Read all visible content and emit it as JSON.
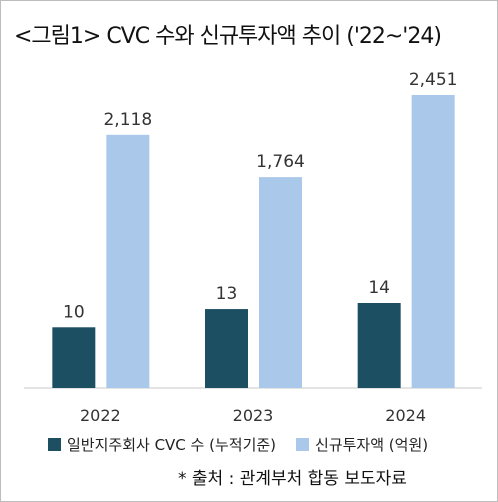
{
  "title": "<그림1> CVC 수와 신규투자액 추이 ('22~'24)",
  "source": "* 출처 :  관계부처 합동 보도자료",
  "colors": {
    "dark": "#1d4f63",
    "light": "#a9c8ea",
    "axis": "#c8c8c8",
    "text": "#333333"
  },
  "chart_data": {
    "type": "bar",
    "categories": [
      "2022",
      "2023",
      "2024"
    ],
    "series": [
      {
        "name": "일반지주회사 CVC 수 (누적기준)",
        "values": [
          10,
          13,
          14
        ],
        "labels": [
          "10",
          "13",
          "14"
        ]
      },
      {
        "name": "신규투자액 (억원)",
        "values": [
          2118,
          1764,
          2451
        ],
        "labels": [
          "2,118",
          "1,764",
          "2,451"
        ]
      }
    ],
    "grid": false,
    "legend": "bottom"
  }
}
